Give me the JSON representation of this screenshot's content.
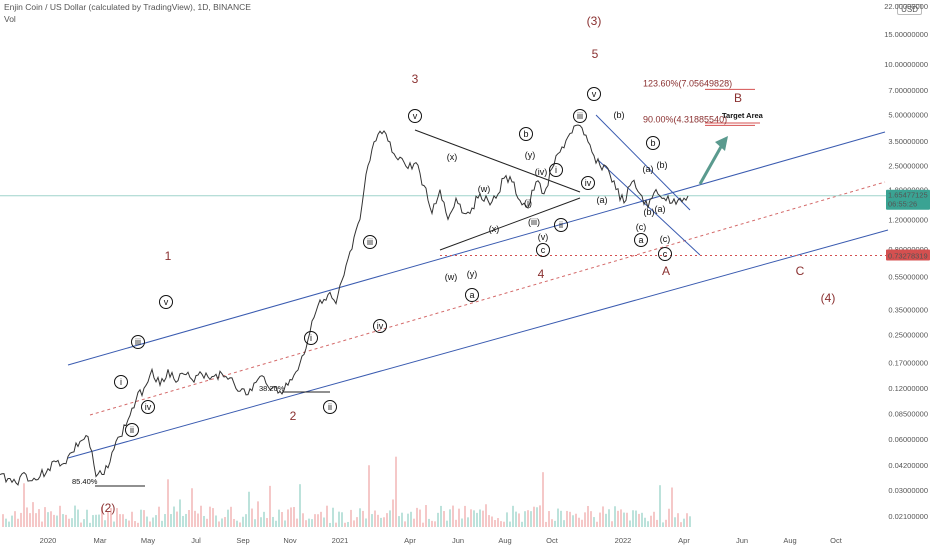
{
  "header": {
    "title": "Enjin Coin / US Dollar (calculated by TradingView), 1D, BINANCE",
    "volume_label": "Vol",
    "currency": "USD"
  },
  "price_axis": {
    "ticks": [
      "22.00000000",
      "15.00000000",
      "10.00000000",
      "7.00000000",
      "5.00000000",
      "3.50000000",
      "2.50000000",
      "1.80000000",
      "1.20000000",
      "0.80000000",
      "0.55000000",
      "0.35000000",
      "0.25000000",
      "0.17000000",
      "0.12000000",
      "0.08500000",
      "0.06000000",
      "0.04200000",
      "0.03000000",
      "0.02100000"
    ],
    "tick_values": [
      22,
      15,
      10,
      7,
      5,
      3.5,
      2.5,
      1.8,
      1.2,
      0.8,
      0.55,
      0.35,
      0.25,
      0.17,
      0.12,
      0.085,
      0.06,
      0.042,
      0.03,
      0.021
    ],
    "last_price": "1.65477125",
    "countdown": "06:55:26",
    "level_price": "0.73278319"
  },
  "time_axis": {
    "ticks": [
      "2020",
      "Mar",
      "May",
      "Jul",
      "Sep",
      "Nov",
      "2021",
      "Apr",
      "Jun",
      "Aug",
      "Oct",
      "2022",
      "Apr",
      "Jun",
      "Aug",
      "Oct"
    ]
  },
  "fib_levels": [
    {
      "label": "123.60%(7.05649828)",
      "price": 7.056
    },
    {
      "label": "90.00%(4.31885540)",
      "price": 4.319
    }
  ],
  "target_label": "Target Area",
  "percent_labels": [
    "85.40%",
    "38.20%"
  ],
  "wave_labels": {
    "major": [
      "1",
      "(2)",
      "2",
      "3",
      "(3)",
      "4",
      "5",
      "A",
      "B",
      "C",
      "(4)"
    ],
    "minor": [
      "i",
      "ii",
      "iii",
      "iv",
      "v",
      "a",
      "b",
      "c",
      "(i)",
      "(ii)",
      "(iii)",
      "(iv)",
      "(v)",
      "(w)",
      "(x)",
      "(y)",
      "(a)",
      "(b)",
      "(c)"
    ]
  },
  "chart_data": {
    "type": "line",
    "scale": "log",
    "title": "Enjin Coin / US Dollar (calculated by TradingView), 1D, BINANCE",
    "xlabel": "",
    "ylabel": "",
    "ylim": [
      0.021,
      22
    ],
    "series": [
      {
        "values": [
          0.037,
          0.035,
          0.033,
          0.038,
          0.034,
          0.036,
          0.04,
          0.044,
          0.043,
          0.05,
          0.058,
          0.062,
          0.036,
          0.037,
          0.05,
          0.062,
          0.078,
          0.102,
          0.12,
          0.155,
          0.125,
          0.155,
          0.13,
          0.145,
          0.135,
          0.15,
          0.14,
          0.145,
          0.14,
          0.138,
          0.115,
          0.11,
          0.13,
          0.14,
          0.12,
          0.115,
          0.125,
          0.15,
          0.19,
          0.3,
          0.4,
          0.43,
          0.38,
          0.56,
          0.8,
          1.2,
          2.5,
          3.5,
          4.0,
          3.0,
          2.8,
          2.4,
          2.6,
          1.9,
          1.3,
          1.8,
          1.2,
          1.6,
          1.3,
          1.4,
          1.7,
          1.55,
          1.6,
          2.1,
          2.0,
          1.55,
          1.4,
          2.0,
          1.7,
          2.4,
          3.0,
          3.7,
          4.32,
          3.8,
          3.0,
          2.5,
          2.4,
          1.8,
          1.5,
          2.0,
          1.7,
          1.4,
          1.8,
          1.6,
          1.5,
          1.6,
          1.65
        ]
      }
    ],
    "annotations": [
      "85.40%",
      "38.20%",
      "123.60%(7.05649828)",
      "90.00%(4.31885540)",
      "Target Area"
    ],
    "grid": false,
    "legend": "none"
  }
}
